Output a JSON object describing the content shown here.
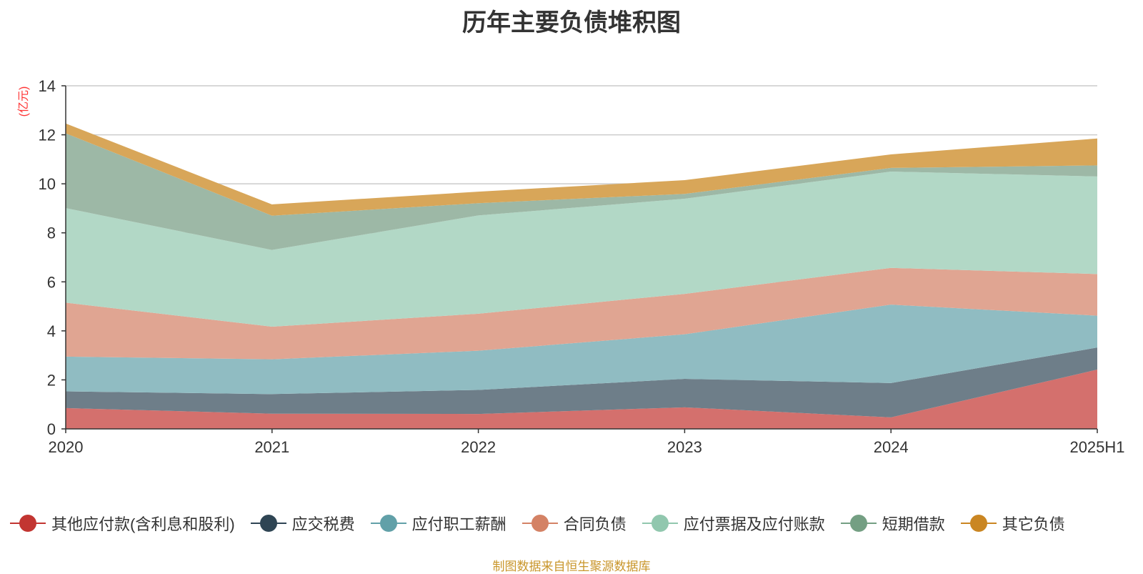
{
  "chart_data": {
    "type": "area",
    "title": "历年主要负债堆积图",
    "ylabel": "(亿元)",
    "x": [
      "2020",
      "2021",
      "2022",
      "2023",
      "2024",
      "2025H1"
    ],
    "ylim": [
      0,
      14
    ],
    "yticks": [
      0,
      2,
      4,
      6,
      8,
      10,
      12,
      14
    ],
    "stacked": true,
    "grid": true,
    "legend_position": "bottom",
    "series": [
      {
        "name": "其他应付款(含利息和股利)",
        "color": "#c23531",
        "fill": "#d4706d",
        "values": [
          0.85,
          0.62,
          0.61,
          0.88,
          0.47,
          2.42
        ]
      },
      {
        "name": "应交税费",
        "color": "#2f4554",
        "fill": "#6e7e89",
        "values": [
          0.68,
          0.8,
          0.98,
          1.16,
          1.4,
          0.9
        ]
      },
      {
        "name": "应付职工薪酬",
        "color": "#61a0a8",
        "fill": "#90bcc2",
        "values": [
          1.42,
          1.42,
          1.6,
          1.82,
          3.2,
          1.3
        ]
      },
      {
        "name": "合同负债",
        "color": "#d48265",
        "fill": "#e0a592",
        "values": [
          2.2,
          1.33,
          1.51,
          1.65,
          1.5,
          1.7
        ]
      },
      {
        "name": "应付票据及应付账款",
        "color": "#91c7ae",
        "fill": "#b2d8c6",
        "values": [
          3.86,
          3.13,
          4.01,
          3.88,
          3.93,
          3.98
        ]
      },
      {
        "name": "短期借款",
        "color": "#749f83",
        "fill": "#9db8a6",
        "values": [
          3.05,
          1.4,
          0.5,
          0.2,
          0.15,
          0.45
        ]
      },
      {
        "name": "其它负债",
        "color": "#ca8622",
        "fill": "#d8a659",
        "values": [
          0.4,
          0.46,
          0.47,
          0.56,
          0.55,
          1.1
        ]
      }
    ]
  },
  "footer": {
    "source": "制图数据来自恒生聚源数据库"
  }
}
